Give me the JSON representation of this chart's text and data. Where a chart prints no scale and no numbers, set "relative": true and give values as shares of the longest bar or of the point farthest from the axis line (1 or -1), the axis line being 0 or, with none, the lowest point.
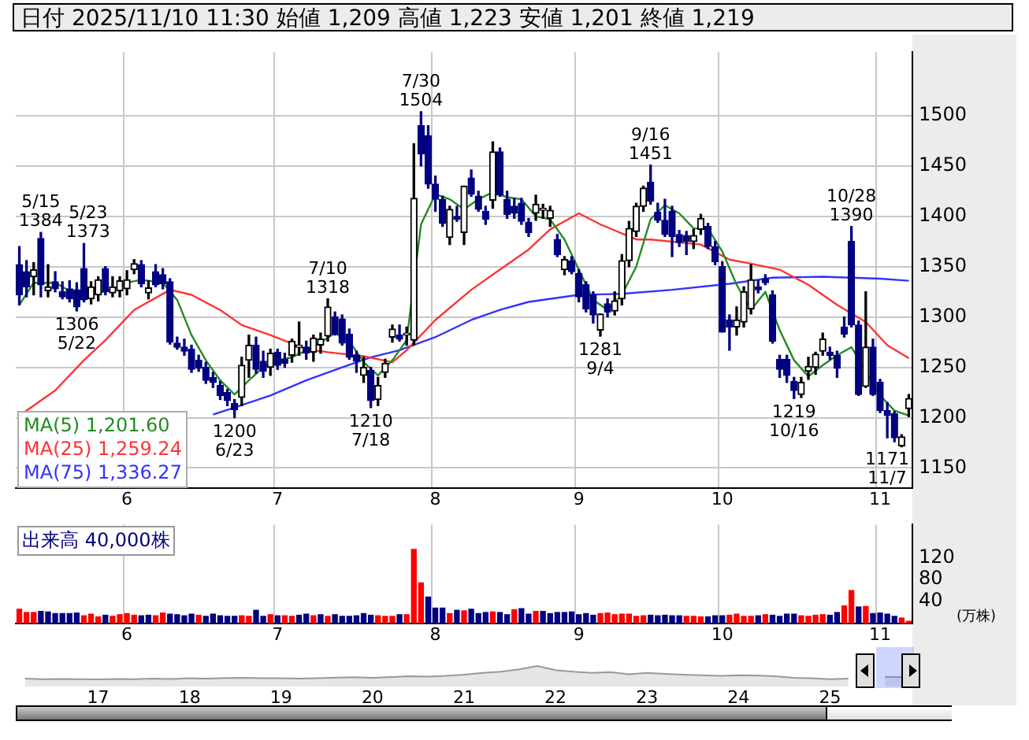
{
  "chart_data": [
    {
      "type": "candlestick",
      "title": "日付 2025/11/10 11:30 始値 1,209 高値 1,223 安値 1,201 終値 1,219",
      "categories": [
        null,
        null,
        null,
        null,
        null,
        null,
        null,
        null,
        null,
        null,
        null,
        null,
        null,
        null,
        null,
        "6",
        null,
        null,
        null,
        null,
        null,
        null,
        null,
        null,
        null,
        null,
        null,
        null,
        null,
        null,
        null,
        null,
        null,
        null,
        null,
        null,
        "7",
        null,
        null,
        null,
        null,
        null,
        null,
        null,
        null,
        null,
        null,
        null,
        null,
        null,
        null,
        null,
        null,
        null,
        null,
        null,
        null,
        null,
        "8",
        null,
        null,
        null,
        null,
        null,
        null,
        null,
        null,
        null,
        null,
        null,
        null,
        null,
        null,
        null,
        null,
        null,
        null,
        null,
        "9",
        null,
        null,
        null,
        null,
        null,
        null,
        null,
        null,
        null,
        null,
        null,
        null,
        null,
        null,
        null,
        null,
        null,
        null,
        null,
        "10",
        null,
        null,
        null,
        null,
        null,
        null,
        null,
        null,
        null,
        null,
        null,
        null,
        null,
        null,
        null,
        null,
        null,
        null,
        null,
        null,
        null,
        "11",
        null,
        null,
        null,
        null
      ],
      "ohlc": [
        [
          1352,
          1370,
          1312,
          1322
        ],
        [
          1345,
          1356,
          1320,
          1330
        ],
        [
          1340,
          1354,
          1322,
          1347
        ],
        [
          1378,
          1384,
          1320,
          1332
        ],
        [
          1326,
          1352,
          1320,
          1330
        ],
        [
          1335,
          1345,
          1325,
          1328
        ],
        [
          1325,
          1335,
          1318,
          1320
        ],
        [
          1328,
          1336,
          1315,
          1318
        ],
        [
          1327,
          1334,
          1306,
          1310
        ],
        [
          1348,
          1373,
          1315,
          1317
        ],
        [
          1318,
          1335,
          1313,
          1330
        ],
        [
          1322,
          1340,
          1316,
          1337
        ],
        [
          1348,
          1350,
          1322,
          1325
        ],
        [
          1324,
          1340,
          1320,
          1330
        ],
        [
          1326,
          1340,
          1320,
          1336
        ],
        [
          1328,
          1346,
          1322,
          1337
        ],
        [
          1347,
          1357,
          1343,
          1353
        ],
        [
          1352,
          1356,
          1330,
          1333
        ],
        [
          1324,
          1336,
          1318,
          1329
        ],
        [
          1345,
          1352,
          1330,
          1332
        ],
        [
          1342,
          1348,
          1328,
          1333
        ],
        [
          1335,
          1338,
          1273,
          1275
        ],
        [
          1274,
          1280,
          1268,
          1270
        ],
        [
          1270,
          1278,
          1262,
          1266
        ],
        [
          1268,
          1272,
          1245,
          1248
        ],
        [
          1257,
          1262,
          1246,
          1249
        ],
        [
          1250,
          1255,
          1234,
          1237
        ],
        [
          1240,
          1245,
          1230,
          1235
        ],
        [
          1232,
          1236,
          1218,
          1222
        ],
        [
          1225,
          1228,
          1212,
          1217
        ],
        [
          1214,
          1218,
          1200,
          1208
        ],
        [
          1220,
          1260,
          1212,
          1252
        ],
        [
          1257,
          1282,
          1240,
          1272
        ],
        [
          1272,
          1280,
          1244,
          1248
        ],
        [
          1256,
          1266,
          1240,
          1246
        ],
        [
          1250,
          1268,
          1242,
          1264
        ],
        [
          1265,
          1268,
          1248,
          1252
        ],
        [
          1258,
          1264,
          1250,
          1254
        ],
        [
          1262,
          1278,
          1255,
          1276
        ],
        [
          1270,
          1295,
          1262,
          1272
        ],
        [
          1270,
          1276,
          1258,
          1264
        ],
        [
          1265,
          1282,
          1256,
          1279
        ],
        [
          1272,
          1284,
          1264,
          1278
        ],
        [
          1281,
          1318,
          1276,
          1310
        ],
        [
          1300,
          1305,
          1282,
          1283
        ],
        [
          1298,
          1302,
          1272,
          1274
        ],
        [
          1283,
          1288,
          1258,
          1260
        ],
        [
          1262,
          1266,
          1245,
          1256
        ],
        [
          1242,
          1260,
          1235,
          1250
        ],
        [
          1247,
          1250,
          1210,
          1217
        ],
        [
          1218,
          1240,
          1212,
          1232
        ],
        [
          1245,
          1258,
          1240,
          1254
        ],
        [
          1280,
          1292,
          1275,
          1288
        ],
        [
          1282,
          1292,
          1276,
          1278
        ],
        [
          1282,
          1290,
          1272,
          1284
        ],
        [
          1277,
          1472,
          1272,
          1418
        ],
        [
          1490,
          1504,
          1450,
          1462
        ],
        [
          1480,
          1490,
          1428,
          1432
        ],
        [
          1432,
          1440,
          1405,
          1417
        ],
        [
          1417,
          1420,
          1390,
          1393
        ],
        [
          1379,
          1410,
          1372,
          1407
        ],
        [
          1400,
          1410,
          1395,
          1397
        ],
        [
          1384,
          1430,
          1372,
          1430
        ],
        [
          1438,
          1446,
          1420,
          1422
        ],
        [
          1420,
          1425,
          1405,
          1407
        ],
        [
          1405,
          1410,
          1392,
          1397
        ],
        [
          1416,
          1474,
          1408,
          1464
        ],
        [
          1464,
          1468,
          1420,
          1421
        ],
        [
          1417,
          1425,
          1398,
          1402
        ],
        [
          1410,
          1418,
          1398,
          1403
        ],
        [
          1413,
          1418,
          1392,
          1395
        ],
        [
          1394,
          1398,
          1380,
          1384
        ],
        [
          1403,
          1421,
          1396,
          1412
        ],
        [
          1406,
          1412,
          1398,
          1408
        ],
        [
          1398,
          1410,
          1390,
          1406
        ],
        [
          1377,
          1382,
          1360,
          1362
        ],
        [
          1347,
          1360,
          1342,
          1357
        ],
        [
          1356,
          1360,
          1343,
          1345
        ],
        [
          1343,
          1347,
          1315,
          1320
        ],
        [
          1332,
          1335,
          1305,
          1308
        ],
        [
          1322,
          1325,
          1294,
          1302
        ],
        [
          1287,
          1303,
          1281,
          1303
        ],
        [
          1313,
          1318,
          1300,
          1305
        ],
        [
          1306,
          1325,
          1302,
          1316
        ],
        [
          1318,
          1362,
          1312,
          1356
        ],
        [
          1356,
          1395,
          1350,
          1388
        ],
        [
          1385,
          1413,
          1380,
          1410
        ],
        [
          1410,
          1430,
          1405,
          1428
        ],
        [
          1434,
          1451,
          1412,
          1415
        ],
        [
          1404,
          1413,
          1394,
          1396
        ],
        [
          1396,
          1417,
          1380,
          1382
        ],
        [
          1405,
          1410,
          1360,
          1380
        ],
        [
          1382,
          1386,
          1370,
          1374
        ],
        [
          1381,
          1385,
          1362,
          1375
        ],
        [
          1375,
          1387,
          1368,
          1381
        ],
        [
          1387,
          1402,
          1382,
          1398
        ],
        [
          1390,
          1393,
          1368,
          1370
        ],
        [
          1370,
          1375,
          1352,
          1355
        ],
        [
          1350,
          1355,
          1285,
          1285
        ],
        [
          1297,
          1302,
          1267,
          1290
        ],
        [
          1290,
          1310,
          1282,
          1297
        ],
        [
          1295,
          1330,
          1290,
          1325
        ],
        [
          1308,
          1352,
          1303,
          1337
        ],
        [
          1330,
          1336,
          1324,
          1327
        ],
        [
          1338,
          1342,
          1332,
          1334
        ],
        [
          1322,
          1326,
          1274,
          1276
        ],
        [
          1258,
          1262,
          1240,
          1248
        ],
        [
          1258,
          1262,
          1235,
          1242
        ],
        [
          1236,
          1240,
          1219,
          1227
        ],
        [
          1223,
          1240,
          1220,
          1235
        ],
        [
          1246,
          1260,
          1238,
          1251
        ],
        [
          1250,
          1265,
          1243,
          1263
        ],
        [
          1266,
          1284,
          1262,
          1278
        ],
        [
          1265,
          1270,
          1258,
          1262
        ],
        [
          1262,
          1266,
          1240,
          1249
        ],
        [
          1290,
          1300,
          1280,
          1283
        ],
        [
          1375,
          1390,
          1290,
          1292
        ],
        [
          1292,
          1296,
          1222,
          1223
        ],
        [
          1231,
          1325,
          1230,
          1270
        ],
        [
          1270,
          1278,
          1222,
          1223
        ],
        [
          1235,
          1238,
          1205,
          1207
        ],
        [
          1207,
          1215,
          1180,
          1202
        ],
        [
          1204,
          1206,
          1176,
          1180
        ],
        [
          1172,
          1183,
          1171,
          1181
        ],
        [
          1209,
          1223,
          1201,
          1219
        ]
      ],
      "series": [
        {
          "name": "MA(5) 1,201.60",
          "type": "line",
          "color": "#228b22",
          "values": [
            1312,
            null,
            1334,
            null,
            null,
            1334,
            null,
            null,
            1322,
            null,
            1322,
            null,
            null,
            1327,
            null,
            1334,
            null,
            1337,
            null,
            null,
            1334,
            null,
            1317,
            null,
            1282,
            null,
            1257,
            null,
            1237,
            null,
            1223,
            null,
            1237,
            null,
            1250,
            null,
            1257,
            null,
            1260,
            null,
            null,
            1270,
            null,
            null,
            1284,
            null,
            1276,
            null,
            1255,
            null,
            1242,
            null,
            1257,
            null,
            1277,
            null,
            1392,
            null,
            1422,
            null,
            1417,
            null,
            1407,
            null,
            1417,
            null,
            1424,
            null,
            1419,
            null,
            1417,
            null,
            1400,
            null,
            1397,
            null,
            1377,
            null,
            1347,
            null,
            1317,
            null,
            1307,
            null,
            1322,
            null,
            1350,
            null,
            1397,
            null,
            1411,
            null,
            1403,
            null,
            1388,
            null,
            1388,
            null,
            1365,
            null,
            1332,
            null,
            1307,
            null,
            1325,
            null,
            1287,
            null,
            1257,
            null,
            1241,
            null,
            1252,
            null,
            1262,
            null,
            1270,
            null,
            null,
            null,
            1222,
            null,
            1207,
            null,
            1202
          ]
        },
        {
          "name": "MA(25) 1,259.24",
          "type": "line",
          "color": "#ff3333",
          "values": [
            1202,
            null,
            null,
            null,
            null,
            1227,
            null,
            null,
            null,
            1257,
            null,
            null,
            1277,
            null,
            null,
            null,
            1307,
            null,
            null,
            null,
            null,
            1327,
            null,
            null,
            1322,
            null,
            null,
            null,
            1307,
            null,
            null,
            1292,
            null,
            null,
            null,
            1282,
            null,
            null,
            null,
            null,
            1268,
            null,
            null,
            1265,
            null,
            null,
            null,
            null,
            1261,
            null,
            null,
            null,
            1255,
            null,
            1267,
            null,
            null,
            null,
            1297,
            null,
            null,
            null,
            null,
            1327,
            null,
            null,
            null,
            1347,
            null,
            null,
            null,
            1367,
            null,
            null,
            1387,
            null,
            null,
            null,
            1403,
            null,
            null,
            1392,
            null,
            null,
            null,
            null,
            1377,
            null,
            1377,
            null,
            null,
            null,
            null,
            null,
            null,
            1372,
            null,
            null,
            null,
            1357,
            null,
            null,
            1353,
            null,
            null,
            null,
            1347,
            null,
            null,
            null,
            1332,
            null,
            null,
            null,
            1312,
            null,
            null,
            null,
            1295,
            null,
            null,
            1272,
            null,
            null,
            1259
          ]
        },
        {
          "name": "MA(75) 1,336.27",
          "type": "line",
          "color": "#3333ff",
          "values": [
            null,
            null,
            null,
            null,
            null,
            null,
            null,
            null,
            null,
            null,
            null,
            null,
            null,
            null,
            null,
            null,
            null,
            null,
            null,
            null,
            null,
            null,
            null,
            null,
            null,
            null,
            null,
            1203,
            null,
            null,
            1210,
            null,
            null,
            null,
            null,
            1222,
            null,
            null,
            null,
            null,
            1237,
            null,
            null,
            null,
            null,
            1250,
            null,
            null,
            null,
            1260,
            null,
            null,
            null,
            1267,
            null,
            null,
            null,
            null,
            1280,
            null,
            null,
            null,
            null,
            1297,
            null,
            null,
            null,
            1307,
            null,
            null,
            null,
            1315,
            null,
            null,
            null,
            null,
            null,
            null,
            1322,
            null,
            null,
            null,
            null,
            null,
            1323,
            null,
            null,
            null,
            null,
            null,
            null,
            1327,
            null,
            null,
            null,
            null,
            null,
            null,
            null,
            1333,
            null,
            null,
            null,
            null,
            null,
            1339,
            null,
            null,
            null,
            null,
            null,
            null,
            1340,
            null,
            null,
            null,
            null,
            null,
            null,
            null,
            1338,
            null,
            null,
            null,
            1336
          ]
        }
      ],
      "ylim": [
        1130,
        1563
      ],
      "yticks": [
        1150,
        1200,
        1250,
        1300,
        1350,
        1400,
        1450,
        1500
      ],
      "grid": true,
      "legend": "bottom left",
      "marker": "none",
      "line_style": "solid",
      "annotations": [
        {
          "text": "5/15\n1384",
          "y": 1384
        },
        {
          "text": "1306\n5/22",
          "y": 1306
        },
        {
          "text": "5/23\n1373",
          "y": 1373
        },
        {
          "text": "1200\n6/23",
          "y": 1200
        },
        {
          "text": "7/10\n1318",
          "y": 1318
        },
        {
          "text": "1210\n7/18",
          "y": 1210
        },
        {
          "text": "7/30\n1504",
          "y": 1504
        },
        {
          "text": "1281\n9/4",
          "y": 1281
        },
        {
          "text": "9/16\n1451",
          "y": 1451
        },
        {
          "text": "1219\n10/16",
          "y": 1219
        },
        {
          "text": "10/28\n1390",
          "y": 1390
        },
        {
          "text": "1171\n11/7",
          "y": 1171
        }
      ]
    },
    {
      "type": "bar",
      "title": "出来高 40,000株",
      "ylabel": "(万株)",
      "categories": [
        null,
        null,
        null,
        null,
        null,
        null,
        null,
        null,
        null,
        null,
        null,
        null,
        null,
        null,
        null,
        "6",
        null,
        null,
        null,
        null,
        null,
        null,
        null,
        null,
        null,
        null,
        null,
        null,
        null,
        null,
        null,
        null,
        null,
        null,
        null,
        null,
        "7",
        null,
        null,
        null,
        null,
        null,
        null,
        null,
        null,
        null,
        null,
        null,
        null,
        null,
        null,
        null,
        null,
        null,
        null,
        null,
        null,
        null,
        "8",
        null,
        null,
        null,
        null,
        null,
        null,
        null,
        null,
        null,
        null,
        null,
        null,
        null,
        null,
        null,
        null,
        null,
        null,
        null,
        "9",
        null,
        null,
        null,
        null,
        null,
        null,
        null,
        null,
        null,
        null,
        null,
        null,
        null,
        null,
        null,
        null,
        null,
        null,
        null,
        "10",
        null,
        null,
        null,
        null,
        null,
        null,
        null,
        null,
        null,
        null,
        null,
        null,
        null,
        null,
        null,
        null,
        null,
        null,
        null,
        null,
        null,
        "11",
        null,
        null,
        null,
        null
      ],
      "values": [
        26,
        20,
        20,
        22,
        21,
        18,
        18,
        18,
        19,
        14,
        17,
        12,
        15,
        13,
        16,
        18,
        15,
        14,
        15,
        14,
        19,
        17,
        16,
        14,
        17,
        15,
        13,
        17,
        14,
        13,
        13,
        14,
        13,
        24,
        13,
        16,
        14,
        14,
        13,
        15,
        17,
        14,
        16,
        13,
        16,
        13,
        13,
        14,
        18,
        15,
        14,
        13,
        13,
        16,
        16,
        135,
        74,
        48,
        28,
        28,
        18,
        24,
        23,
        26,
        18,
        20,
        21,
        20,
        16,
        25,
        27,
        17,
        22,
        22,
        18,
        20,
        20,
        21,
        16,
        18,
        15,
        18,
        19,
        16,
        17,
        17,
        13,
        14,
        15,
        14,
        15,
        14,
        14,
        13,
        13,
        12,
        12,
        14,
        14,
        15,
        17,
        13,
        13,
        14,
        16,
        15,
        13,
        17,
        17,
        14,
        13,
        15,
        16,
        15,
        20,
        32,
        60,
        30,
        31,
        18,
        19,
        17,
        13,
        10,
        4
      ],
      "colors": [
        "#ff0000",
        "#ff0000",
        "#ff0000",
        "#000080",
        "#000080",
        "#000080",
        "#000080",
        "#000080",
        "#000080",
        "#ff0000",
        "#ff0000",
        "#ff0000",
        "#000080",
        "#ff0000",
        "#ff0000",
        "#ff0000",
        "#ff0000",
        "#000080",
        "#000080",
        "#ff0000",
        "#ff0000",
        "#000080",
        "#000080",
        "#000080",
        "#000080",
        "#ff0000",
        "#000080",
        "#000080",
        "#000080",
        "#000080",
        "#000080",
        "#ff0000",
        "#ff0000",
        "#000080",
        "#000080",
        "#ff0000",
        "#000080",
        "#ff0000",
        "#ff0000",
        "#000080",
        "#000080",
        "#ff0000",
        "#000080",
        "#ff0000",
        "#000080",
        "#000080",
        "#000080",
        "#000080",
        "#000080",
        "#000080",
        "#ff0000",
        "#ff0000",
        "#ff0000",
        "#000080",
        "#ff0000",
        "#ff0000",
        "#ff0000",
        "#000080",
        "#000080",
        "#000080",
        "#ff0000",
        "#000080",
        "#ff0000",
        "#000080",
        "#000080",
        "#000080",
        "#ff0000",
        "#000080",
        "#000080",
        "#ff0000",
        "#000080",
        "#000080",
        "#ff0000",
        "#000080",
        "#000080",
        "#000080",
        "#000080",
        "#000080",
        "#000080",
        "#000080",
        "#000080",
        "#ff0000",
        "#ff0000",
        "#ff0000",
        "#ff0000",
        "#ff0000",
        "#ff0000",
        "#ff0000",
        "#000080",
        "#000080",
        "#000080",
        "#000080",
        "#000080",
        "#ff0000",
        "#ff0000",
        "#ff0000",
        "#000080",
        "#000080",
        "#000080",
        "#ff0000",
        "#ff0000",
        "#ff0000",
        "#ff0000",
        "#000080",
        "#ff0000",
        "#000080",
        "#000080",
        "#000080",
        "#000080",
        "#ff0000",
        "#ff0000",
        "#ff0000",
        "#ff0000",
        "#000080",
        "#000080",
        "#ff0000",
        "#ff0000",
        "#000080",
        "#ff0000",
        "#000080",
        "#000080",
        "#000080",
        "#000080",
        "#ff0000",
        "#ff0000"
      ],
      "ylim": [
        0,
        180
      ],
      "yticks": [
        40,
        80,
        120
      ],
      "grid": "x"
    },
    {
      "type": "area",
      "relative": true,
      "color": "#999999",
      "categories": [
        null,
        null,
        null,
        null,
        "17",
        null,
        null,
        null,
        null,
        "18",
        null,
        null,
        null,
        null,
        "19",
        null,
        null,
        null,
        null,
        "20",
        null,
        null,
        null,
        null,
        "21",
        null,
        null,
        null,
        null,
        "22",
        null,
        null,
        null,
        null,
        "23",
        null,
        null,
        null,
        null,
        "24",
        null,
        null,
        null,
        null,
        "25",
        null,
        null,
        null,
        null
      ],
      "values": [
        0.38,
        0.36,
        0.37,
        0.36,
        0.35,
        0.37,
        0.36,
        0.38,
        0.37,
        0.4,
        0.38,
        0.41,
        0.42,
        0.4,
        0.4,
        0.38,
        0.4,
        0.43,
        0.45,
        0.42,
        0.46,
        0.5,
        0.48,
        0.52,
        0.58,
        0.66,
        0.72,
        0.84,
        1.0,
        0.8,
        0.72,
        0.66,
        0.7,
        0.6,
        0.66,
        0.62,
        0.58,
        0.55,
        0.52,
        0.55,
        0.54,
        0.5,
        0.42,
        0.4,
        0.36,
        0.38,
        null,
        0.47,
        0.45
      ]
    }
  ]
}
